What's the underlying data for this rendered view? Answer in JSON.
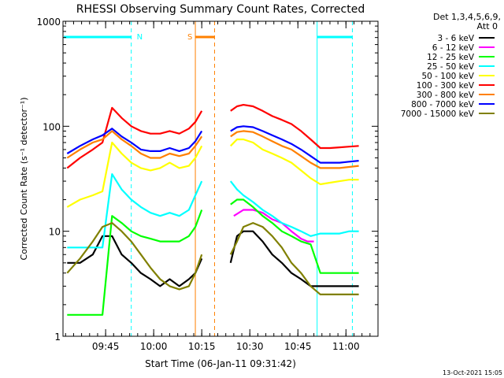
{
  "chart_data": {
    "type": "line",
    "title": "RHESSI Observing Summary Count Rates, Corrected",
    "xlabel": "Start Time (06-Jan-11 09:31:42)",
    "ylabel": "Corrected Count Rate (s⁻¹ detector⁻¹)",
    "y_scale": "log",
    "ylim": [
      1,
      1000
    ],
    "xlim": [
      "09:31:42",
      "11:10:00"
    ],
    "x_ticks": [
      "09:45",
      "10:00",
      "10:15",
      "10:30",
      "10:45",
      "11:00"
    ],
    "y_ticks": [
      "1",
      "10",
      "100",
      "1000"
    ],
    "detector_label": "Det 1,3,4,5,6,9,",
    "attenuator_label": "Att 0",
    "timestamp": "13-Oct-2021 15:05",
    "annotations": [
      {
        "text": "N",
        "color": "#00ffff",
        "span": [
          "09:31:42",
          "09:53:00"
        ]
      },
      {
        "text": "S",
        "color": "#ff8000",
        "span": [
          "10:13:00",
          "10:19:00"
        ]
      },
      {
        "text": "",
        "color": "#00ffff",
        "span": [
          "10:51:00",
          "11:02:00"
        ]
      }
    ],
    "data_gap": [
      "10:15:30",
      "10:23:30"
    ],
    "series": [
      {
        "name": "3 - 6 keV",
        "color": "#000000",
        "x": [
          "09:33",
          "09:37",
          "09:41",
          "09:44",
          "09:47",
          "09:50",
          "09:53",
          "09:56",
          "09:59",
          "10:02",
          "10:05",
          "10:08",
          "10:11",
          "10:13",
          "10:15",
          "10:24",
          "10:26",
          "10:28",
          "10:31",
          "10:34",
          "10:37",
          "10:40",
          "10:43",
          "10:46",
          "10:49",
          "10:52",
          "10:55",
          "10:58",
          "11:01",
          "11:04"
        ],
        "y": [
          5,
          5,
          6,
          9,
          9,
          6,
          5,
          4,
          3.5,
          3,
          3.5,
          3,
          3.5,
          4,
          5.5,
          5,
          9,
          10,
          10,
          8,
          6,
          5,
          4,
          3.5,
          3,
          3,
          3,
          3,
          3,
          3
        ]
      },
      {
        "name": "6 - 12 keV",
        "color": "#ff00ff",
        "x": [
          "10:23",
          "10:25",
          "10:28",
          "10:31",
          "10:34",
          "10:37",
          "10:40",
          "10:43",
          "10:46",
          "10:48",
          "10:50"
        ],
        "y": [
          13,
          14,
          16,
          16,
          15,
          13,
          12,
          10,
          8.5,
          8,
          8
        ]
      },
      {
        "name": "12 - 25 keV",
        "color": "#00ff00",
        "x": [
          "09:33",
          "09:37",
          "09:41",
          "09:44",
          "09:47",
          "09:50",
          "09:53",
          "09:56",
          "09:59",
          "10:02",
          "10:05",
          "10:08",
          "10:11",
          "10:13",
          "10:15",
          "10:24",
          "10:26",
          "10:28",
          "10:31",
          "10:34",
          "10:37",
          "10:40",
          "10:43",
          "10:46",
          "10:49",
          "10:52",
          "10:55",
          "10:58",
          "11:01",
          "11:04"
        ],
        "y": [
          1.6,
          1.6,
          1.6,
          1.6,
          14,
          12,
          10,
          9,
          8.5,
          8,
          8,
          8,
          9,
          11,
          16,
          18,
          20,
          20,
          17,
          14,
          12,
          10,
          9,
          8,
          7.5,
          4,
          4,
          4,
          4,
          4
        ]
      },
      {
        "name": "25 - 50 keV",
        "color": "#00ffff",
        "x": [
          "09:33",
          "09:37",
          "09:41",
          "09:44",
          "09:47",
          "09:50",
          "09:53",
          "09:56",
          "09:59",
          "10:02",
          "10:05",
          "10:08",
          "10:11",
          "10:13",
          "10:15",
          "10:24",
          "10:26",
          "10:28",
          "10:31",
          "10:34",
          "10:37",
          "10:40",
          "10:43",
          "10:46",
          "10:49",
          "10:52",
          "10:55",
          "10:58",
          "11:01",
          "11:04"
        ],
        "y": [
          7,
          7,
          7,
          7,
          35,
          25,
          20,
          17,
          15,
          14,
          15,
          14,
          16,
          22,
          30,
          30,
          25,
          22,
          19,
          16,
          14,
          12,
          11,
          10,
          9,
          9.5,
          9.5,
          9.5,
          10,
          10
        ]
      },
      {
        "name": "50 - 100 keV",
        "color": "#ffff00",
        "x": [
          "09:33",
          "09:37",
          "09:41",
          "09:44",
          "09:47",
          "09:50",
          "09:53",
          "09:56",
          "09:59",
          "10:02",
          "10:05",
          "10:08",
          "10:11",
          "10:13",
          "10:15",
          "10:24",
          "10:26",
          "10:28",
          "10:31",
          "10:34",
          "10:37",
          "10:40",
          "10:43",
          "10:46",
          "10:49",
          "10:52",
          "10:55",
          "10:58",
          "11:01",
          "11:04"
        ],
        "y": [
          17,
          20,
          22,
          24,
          70,
          55,
          45,
          40,
          38,
          40,
          45,
          40,
          42,
          50,
          65,
          65,
          75,
          75,
          70,
          60,
          55,
          50,
          45,
          38,
          32,
          28,
          29,
          30,
          31,
          31
        ]
      },
      {
        "name": "100 - 300 keV",
        "color": "#ff0000",
        "x": [
          "09:33",
          "09:37",
          "09:41",
          "09:44",
          "09:47",
          "09:50",
          "09:53",
          "09:56",
          "09:59",
          "10:02",
          "10:05",
          "10:08",
          "10:11",
          "10:13",
          "10:15",
          "10:24",
          "10:26",
          "10:28",
          "10:31",
          "10:34",
          "10:37",
          "10:40",
          "10:43",
          "10:46",
          "10:49",
          "10:52",
          "10:55",
          "10:58",
          "11:01",
          "11:04"
        ],
        "y": [
          40,
          50,
          60,
          70,
          150,
          120,
          100,
          90,
          85,
          85,
          90,
          85,
          95,
          110,
          140,
          140,
          155,
          160,
          155,
          140,
          125,
          115,
          105,
          90,
          75,
          62,
          62,
          63,
          64,
          65
        ]
      },
      {
        "name": "300 - 800 keV",
        "color": "#ff8000",
        "x": [
          "09:33",
          "09:37",
          "09:41",
          "09:44",
          "09:47",
          "09:50",
          "09:53",
          "09:56",
          "09:59",
          "10:02",
          "10:05",
          "10:08",
          "10:11",
          "10:13",
          "10:15",
          "10:24",
          "10:26",
          "10:28",
          "10:31",
          "10:34",
          "10:37",
          "10:40",
          "10:43",
          "10:46",
          "10:49",
          "10:52",
          "10:55",
          "10:58",
          "11:01",
          "11:04"
        ],
        "y": [
          50,
          60,
          70,
          75,
          90,
          75,
          65,
          55,
          50,
          50,
          55,
          52,
          55,
          65,
          80,
          80,
          88,
          90,
          88,
          80,
          72,
          65,
          60,
          52,
          45,
          40,
          40,
          40,
          41,
          42
        ]
      },
      {
        "name": "800 - 7000 keV",
        "color": "#0000ff",
        "x": [
          "09:33",
          "09:37",
          "09:41",
          "09:44",
          "09:47",
          "09:50",
          "09:53",
          "09:56",
          "09:59",
          "10:02",
          "10:05",
          "10:08",
          "10:11",
          "10:13",
          "10:15",
          "10:24",
          "10:26",
          "10:28",
          "10:31",
          "10:34",
          "10:37",
          "10:40",
          "10:43",
          "10:46",
          "10:49",
          "10:52",
          "10:55",
          "10:58",
          "11:01",
          "11:04"
        ],
        "y": [
          55,
          65,
          75,
          82,
          95,
          80,
          70,
          60,
          58,
          58,
          62,
          58,
          62,
          72,
          90,
          90,
          98,
          100,
          98,
          90,
          82,
          75,
          68,
          60,
          52,
          45,
          45,
          45,
          46,
          47
        ]
      },
      {
        "name": "7000 - 15000 keV",
        "color": "#808000",
        "x": [
          "09:33",
          "09:37",
          "09:41",
          "09:44",
          "09:47",
          "09:50",
          "09:53",
          "09:56",
          "09:59",
          "10:02",
          "10:05",
          "10:08",
          "10:11",
          "10:13",
          "10:15",
          "10:24",
          "10:26",
          "10:28",
          "10:31",
          "10:34",
          "10:37",
          "10:40",
          "10:43",
          "10:46",
          "10:49",
          "10:52",
          "10:55",
          "10:58",
          "11:01",
          "11:04"
        ],
        "y": [
          4,
          5.5,
          8,
          11,
          12,
          10,
          8,
          6,
          4.5,
          3.5,
          3,
          2.8,
          3,
          4,
          6,
          6,
          8,
          11,
          12,
          11,
          9,
          7,
          5,
          4,
          3,
          2.5,
          2.5,
          2.5,
          2.5,
          2.5
        ]
      }
    ]
  }
}
